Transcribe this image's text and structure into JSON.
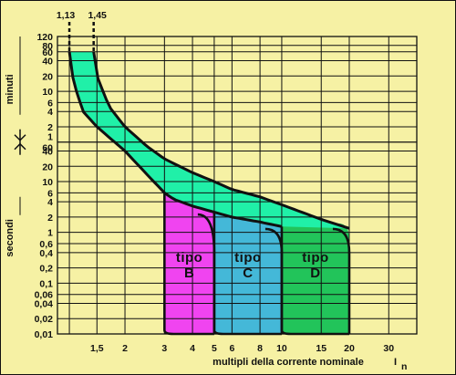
{
  "chart_data": {
    "type": "area",
    "xlabel": "multipli della corrente nominale",
    "xlabel_symbol": "I",
    "xlabel_subscript": "n",
    "x_scale": "log",
    "x_range": [
      1.0,
      40
    ],
    "x_ticks": [
      {
        "value": 1.5,
        "label": "1,5"
      },
      {
        "value": 2,
        "label": "2"
      },
      {
        "value": 3,
        "label": "3"
      },
      {
        "value": 4,
        "label": "4"
      },
      {
        "value": 5,
        "label": "5"
      },
      {
        "value": 6,
        "label": "6"
      },
      {
        "value": 8,
        "label": "8"
      },
      {
        "value": 10,
        "label": "10"
      },
      {
        "value": 15,
        "label": "15"
      },
      {
        "value": 20,
        "label": "20"
      },
      {
        "value": 30,
        "label": "30"
      }
    ],
    "x_grid_values": [
      1.13,
      1.5,
      2,
      3,
      4,
      5,
      6,
      8,
      10,
      15,
      20,
      30
    ],
    "top_markers": [
      {
        "value": 1.13,
        "label": "1,13"
      },
      {
        "value": 1.45,
        "label": "1,45"
      }
    ],
    "y_scale": "log",
    "y_unit_groups": [
      {
        "label": "minuti",
        "range_seconds": [
          60,
          7200
        ]
      },
      {
        "label": "secondi",
        "range_seconds": [
          0.01,
          60
        ]
      }
    ],
    "y_ticks": [
      {
        "seconds": 7200,
        "label": "120"
      },
      {
        "seconds": 4800,
        "label": "80"
      },
      {
        "seconds": 3600,
        "label": "60"
      },
      {
        "seconds": 2400,
        "label": "40"
      },
      {
        "seconds": 1200,
        "label": "20"
      },
      {
        "seconds": 600,
        "label": "10"
      },
      {
        "seconds": 360,
        "label": "6"
      },
      {
        "seconds": 240,
        "label": "4"
      },
      {
        "seconds": 120,
        "label": "2"
      },
      {
        "seconds": 60,
        "label": "1"
      },
      {
        "seconds": 60,
        "label": "60"
      },
      {
        "seconds": 40,
        "label": "40"
      },
      {
        "seconds": 20,
        "label": "20"
      },
      {
        "seconds": 10,
        "label": "10"
      },
      {
        "seconds": 6,
        "label": "6"
      },
      {
        "seconds": 4,
        "label": "4"
      },
      {
        "seconds": 2,
        "label": "2"
      },
      {
        "seconds": 1,
        "label": "1"
      },
      {
        "seconds": 0.6,
        "label": "0,6"
      },
      {
        "seconds": 0.4,
        "label": "0,4"
      },
      {
        "seconds": 0.2,
        "label": "0,2"
      },
      {
        "seconds": 0.1,
        "label": "0,1"
      },
      {
        "seconds": 0.06,
        "label": "0,06"
      },
      {
        "seconds": 0.04,
        "label": "0,04"
      },
      {
        "seconds": 0.02,
        "label": "0,02"
      },
      {
        "seconds": 0.01,
        "label": "0,01"
      }
    ],
    "thermal_band": {
      "color": "#20f0a8",
      "lower_curve": [
        [
          1.13,
          3600
        ],
        [
          1.18,
          900
        ],
        [
          1.3,
          240
        ],
        [
          1.5,
          120
        ],
        [
          2,
          40
        ],
        [
          2.5,
          14
        ],
        [
          3,
          6
        ],
        [
          3.3,
          4.5
        ],
        [
          4,
          3.3
        ],
        [
          5,
          2.5
        ],
        [
          6,
          2
        ],
        [
          8,
          1.6
        ],
        [
          10,
          1.3
        ]
      ],
      "upper_curve": [
        [
          1.45,
          3600
        ],
        [
          1.5,
          1200
        ],
        [
          1.7,
          300
        ],
        [
          2,
          120
        ],
        [
          2.5,
          50
        ],
        [
          3,
          28
        ],
        [
          4,
          15
        ],
        [
          5,
          10
        ],
        [
          6,
          7
        ],
        [
          8,
          5
        ],
        [
          10,
          3.5
        ],
        [
          15,
          1.8
        ],
        [
          20,
          1.2
        ]
      ]
    },
    "trip_regions": [
      {
        "name": "tipo B",
        "line1": "tipo",
        "line2": "B",
        "color": "#f044f0",
        "x_from": 3,
        "x_to": 5
      },
      {
        "name": "tipo C",
        "line1": "tipo",
        "line2": "C",
        "color": "#44b8d8",
        "x_from": 5,
        "x_to": 10
      },
      {
        "name": "tipo D",
        "line1": "tipo",
        "line2": "D",
        "color": "#22c45a",
        "x_from": 10,
        "x_to": 20
      }
    ],
    "colors": {
      "background": "#f6f1a4",
      "grid": "#111111",
      "curve": "#111111"
    },
    "grid": true
  }
}
